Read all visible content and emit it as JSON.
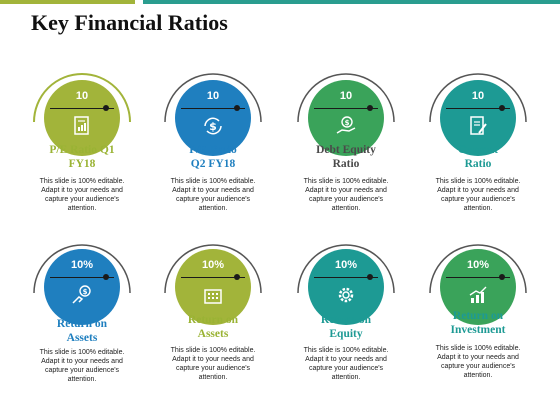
{
  "title": "Key Financial Ratios",
  "colors": {
    "green": "#a2b43a",
    "blue": "#1f7fbf",
    "dark_green": "#3aa35a",
    "teal": "#1d9a94",
    "label_dark": "#4a4a4a"
  },
  "cards": [
    {
      "value": "10",
      "label_line1": "P/E Ratio Q1",
      "label_line2": "FY18",
      "icon": "document-chart-icon",
      "desc_line1": "This slide is 100% editable.",
      "desc_line2": "Adapt it to your needs and",
      "desc_line3": "capture your audience's",
      "desc_line4": "attention."
    },
    {
      "value": "10",
      "label_line1": "P/E Ratio",
      "label_line2": "Q2 FY18",
      "icon": "dollar-cycle-icon",
      "desc_line1": "This slide is 100% editable.",
      "desc_line2": "Adapt it to your needs and",
      "desc_line3": "capture your audience's",
      "desc_line4": "attention."
    },
    {
      "value": "10",
      "label_line1": "Debt Equity",
      "label_line2": "Ratio",
      "icon": "hand-money-icon",
      "desc_line1": "This slide is 100% editable.",
      "desc_line2": "Adapt it to your needs and",
      "desc_line3": "capture your audience's",
      "desc_line4": "attention."
    },
    {
      "value": "10",
      "label_line1": "Current",
      "label_line2": "Ratio",
      "icon": "document-edit-icon",
      "desc_line1": "This slide is 100% editable.",
      "desc_line2": "Adapt it to your needs and",
      "desc_line3": "capture your audience's",
      "desc_line4": "attention."
    },
    {
      "value": "10%",
      "label_line1": "Return on",
      "label_line2": "Assets",
      "icon": "hand-coin-icon",
      "desc_line1": "This slide is 100% editable.",
      "desc_line2": "Adapt it to your needs and",
      "desc_line3": "capture your audience's",
      "desc_line4": "attention."
    },
    {
      "value": "10%",
      "label_line1": "Return on",
      "label_line2": "Assets",
      "icon": "calculator-icon",
      "desc_line1": "This slide is 100% editable.",
      "desc_line2": "Adapt it to your needs and",
      "desc_line3": "capture your audience's",
      "desc_line4": "attention."
    },
    {
      "value": "10%",
      "label_line1": "Return on",
      "label_line2": "Equity",
      "icon": "gear-icon",
      "desc_line1": "This slide is 100% editable.",
      "desc_line2": "Adapt it to your needs and",
      "desc_line3": "capture your audience's",
      "desc_line4": "attention."
    },
    {
      "value": "10%",
      "label_line1": "Return on",
      "label_line2": "Investment",
      "icon": "growth-chart-icon",
      "desc_line1": "This slide is 100% editable.",
      "desc_line2": "Adapt it to your needs and",
      "desc_line3": "capture your audience's",
      "desc_line4": "attention."
    }
  ]
}
